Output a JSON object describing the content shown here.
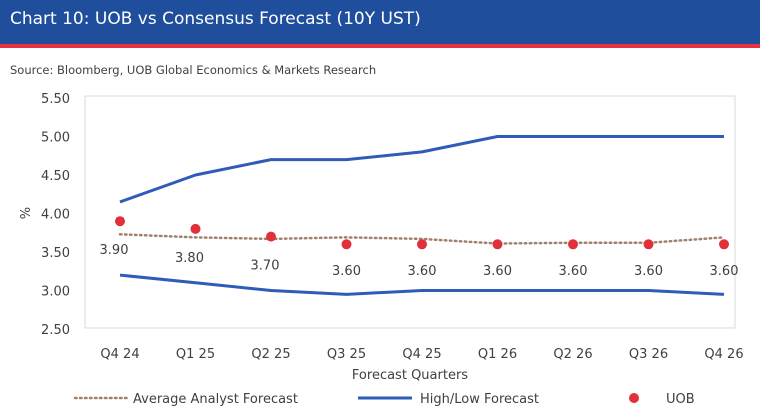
{
  "header": {
    "title": "Chart 10: UOB vs Consensus Forecast (10Y UST)"
  },
  "source_note": "Source: Bloomberg, UOB Global Economics & Markets Research",
  "colors": {
    "header_bg": "#1f4e9c",
    "header_rule": "#e5343f",
    "high_low": "#2e5cb8",
    "average": "#a0806a",
    "uob": "#e0303a"
  },
  "chart_data": {
    "type": "line",
    "title": "",
    "xlabel": "Forecast Quarters",
    "ylabel": "%",
    "categories": [
      "Q4 24",
      "Q1 25",
      "Q2 25",
      "Q3 25",
      "Q4 25",
      "Q1 26",
      "Q2 26",
      "Q3 26",
      "Q4 26"
    ],
    "ylim": [
      2.5,
      5.5
    ],
    "yticks": [
      "2.50",
      "3.00",
      "3.50",
      "4.00",
      "4.50",
      "5.00",
      "5.50"
    ],
    "grid": false,
    "legend_position": "bottom",
    "series": [
      {
        "name": "Average Analyst Forecast",
        "style": "dotted",
        "values": [
          3.73,
          3.69,
          3.67,
          3.69,
          3.67,
          3.61,
          3.62,
          3.62,
          3.69
        ]
      },
      {
        "name": "High/Low Forecast",
        "style": "solid",
        "part": "high",
        "values": [
          4.15,
          4.5,
          4.7,
          4.7,
          4.8,
          5.0,
          5.0,
          5.0,
          5.0
        ]
      },
      {
        "name": "High/Low Forecast",
        "style": "solid",
        "part": "low",
        "values": [
          3.2,
          3.1,
          3.0,
          2.95,
          3.0,
          3.0,
          3.0,
          3.0,
          2.95
        ]
      },
      {
        "name": "UOB",
        "style": "marker",
        "values": [
          3.9,
          3.8,
          3.7,
          3.6,
          3.6,
          3.6,
          3.6,
          3.6,
          3.6
        ],
        "labels": [
          "3.90",
          "3.80",
          "3.70",
          "3.60",
          "3.60",
          "3.60",
          "3.60",
          "3.60",
          "3.60"
        ]
      }
    ],
    "legend": [
      "Average Analyst Forecast",
      "High/Low Forecast",
      "UOB"
    ]
  }
}
